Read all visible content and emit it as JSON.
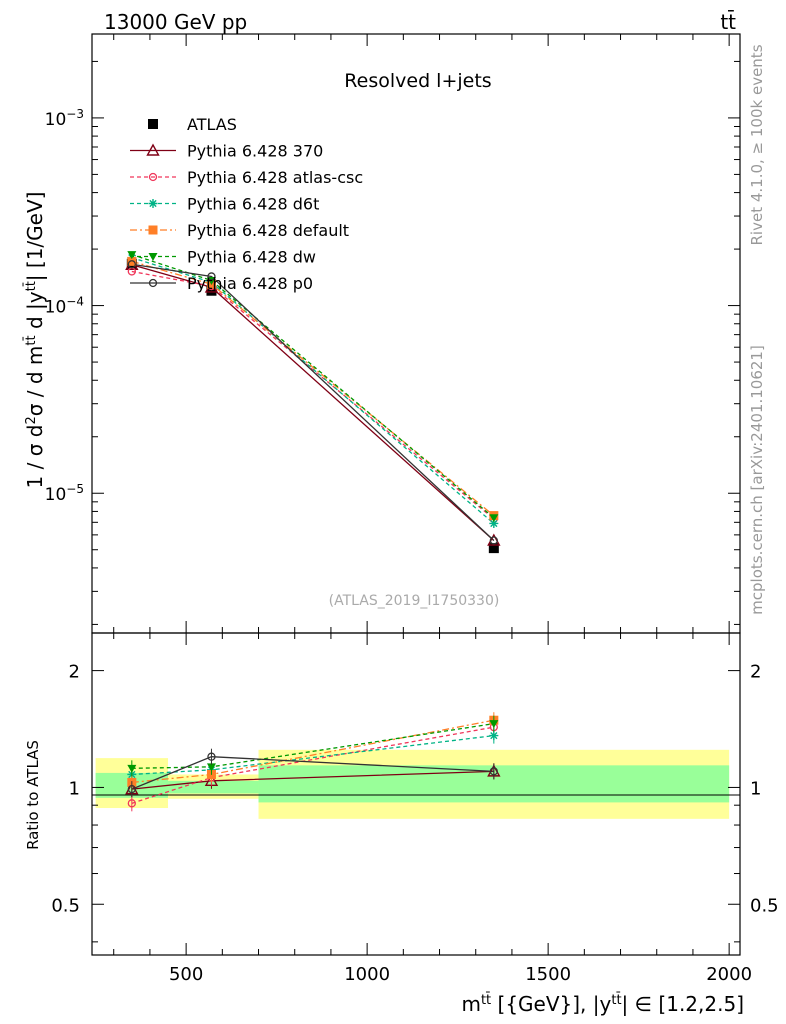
{
  "header": {
    "left": "13000 GeV pp",
    "right": "tt̄"
  },
  "side_labels": {
    "rivet": "Rivet 4.1.0, ≥ 100k events",
    "mcplots": "mcplots.cern.ch [arXiv:2401.10621]"
  },
  "colors": {
    "band_inner": "#99ff99",
    "band_outer": "#ffff99"
  },
  "chart_data": [
    {
      "type": "line",
      "title": "Resolved l+jets",
      "watermark": "(ATLAS_2019_I1750330)",
      "ylabel": "1 / σ d²σ / d m^{tt̄} d |y^{tt̄}| [1/GeV]",
      "yscale": "log",
      "ylim": [
        1.8e-06,
        0.0028
      ],
      "xlim": [
        240,
        2030
      ],
      "xticks": [
        500,
        1000,
        1500,
        2000
      ],
      "yticks": [
        {
          "value": 1e-05,
          "label_base": "10",
          "label_exp": "−5"
        },
        {
          "value": 0.0001,
          "label_base": "10",
          "label_exp": "−4"
        },
        {
          "value": 0.001,
          "label_base": "10",
          "label_exp": "−3"
        }
      ],
      "x": [
        350,
        570,
        1350
      ],
      "x_bins": [
        [
          250,
          450
        ],
        [
          450,
          700
        ],
        [
          700,
          2000
        ]
      ],
      "series": [
        {
          "name": "ATLAS",
          "values": [
            0.000167,
            0.00012,
            5.1e-06
          ],
          "color": "#000000",
          "marker": "square",
          "dash": "none",
          "is_data": true
        },
        {
          "name": "Pythia 6.428 370",
          "values": [
            0.000165,
            0.000125,
            5.6e-06
          ],
          "color": "#7f0015",
          "marker": "triangle-open",
          "dash": "none"
        },
        {
          "name": "Pythia 6.428 atlas-csc",
          "values": [
            0.000152,
            0.000127,
            7.3e-06
          ],
          "color": "#f0365a",
          "marker": "circle-open",
          "dash": "4,3"
        },
        {
          "name": "Pythia 6.428 d6t",
          "values": [
            0.00018,
            0.000133,
            6.9e-06
          ],
          "color": "#00b386",
          "marker": "asterisk",
          "dash": "4,3"
        },
        {
          "name": "Pythia 6.428 default",
          "values": [
            0.000172,
            0.00013,
            7.6e-06
          ],
          "color": "#ff7f27",
          "marker": "square",
          "dash": "7,3,2,3"
        },
        {
          "name": "Pythia 6.428 dw",
          "values": [
            0.000187,
            0.000136,
            7.4e-06
          ],
          "color": "#009900",
          "marker": "triangle-down",
          "dash": "4,3"
        },
        {
          "name": "Pythia 6.428 p0",
          "values": [
            0.000166,
            0.000143,
            5.6e-06
          ],
          "color": "#333333",
          "marker": "circle-open",
          "dash": "none"
        }
      ]
    },
    {
      "type": "line",
      "ylabel": "Ratio to ATLAS",
      "xlabel": "m^{tt̄} [{GeV}], |y^{tt̄}| ∈ [1.2,2.5]",
      "yscale": "log",
      "ylim": [
        0.37,
        2.5
      ],
      "xlim": [
        240,
        2030
      ],
      "xticks": [
        500,
        1000,
        1500,
        2000
      ],
      "yticks": [
        {
          "value": 0.5,
          "label": "0.5"
        },
        {
          "value": 1,
          "label": "1"
        },
        {
          "value": 2,
          "label": "2"
        }
      ],
      "x": [
        350,
        570,
        1350
      ],
      "bands": [
        {
          "x0": 250,
          "x1": 450,
          "inner": [
            0.94,
            1.09
          ],
          "outer": [
            0.885,
            1.19
          ]
        },
        {
          "x0": 450,
          "x1": 700,
          "inner": [
            0.965,
            1.04
          ],
          "outer": [
            0.935,
            1.08
          ]
        },
        {
          "x0": 700,
          "x1": 2000,
          "inner": [
            0.915,
            1.14
          ],
          "outer": [
            0.83,
            1.25
          ]
        }
      ],
      "series": [
        {
          "name": "Pythia 6.428 370",
          "values": [
            0.99,
            1.04,
            1.1
          ],
          "color": "#7f0015",
          "marker": "triangle-open",
          "dash": "none"
        },
        {
          "name": "Pythia 6.428 atlas-csc",
          "values": [
            0.91,
            1.06,
            1.43
          ],
          "color": "#f0365a",
          "marker": "circle-open",
          "dash": "4,3"
        },
        {
          "name": "Pythia 6.428 d6t",
          "values": [
            1.08,
            1.11,
            1.36
          ],
          "color": "#00b386",
          "marker": "asterisk",
          "dash": "4,3"
        },
        {
          "name": "Pythia 6.428 default",
          "values": [
            1.03,
            1.08,
            1.49
          ],
          "color": "#ff7f27",
          "marker": "square",
          "dash": "7,3,2,3"
        },
        {
          "name": "Pythia 6.428 dw",
          "values": [
            1.12,
            1.13,
            1.46
          ],
          "color": "#009900",
          "marker": "triangle-down",
          "dash": "4,3"
        },
        {
          "name": "Pythia 6.428 p0",
          "values": [
            0.99,
            1.2,
            1.1
          ],
          "color": "#333333",
          "marker": "circle-open",
          "dash": "none"
        }
      ]
    }
  ]
}
